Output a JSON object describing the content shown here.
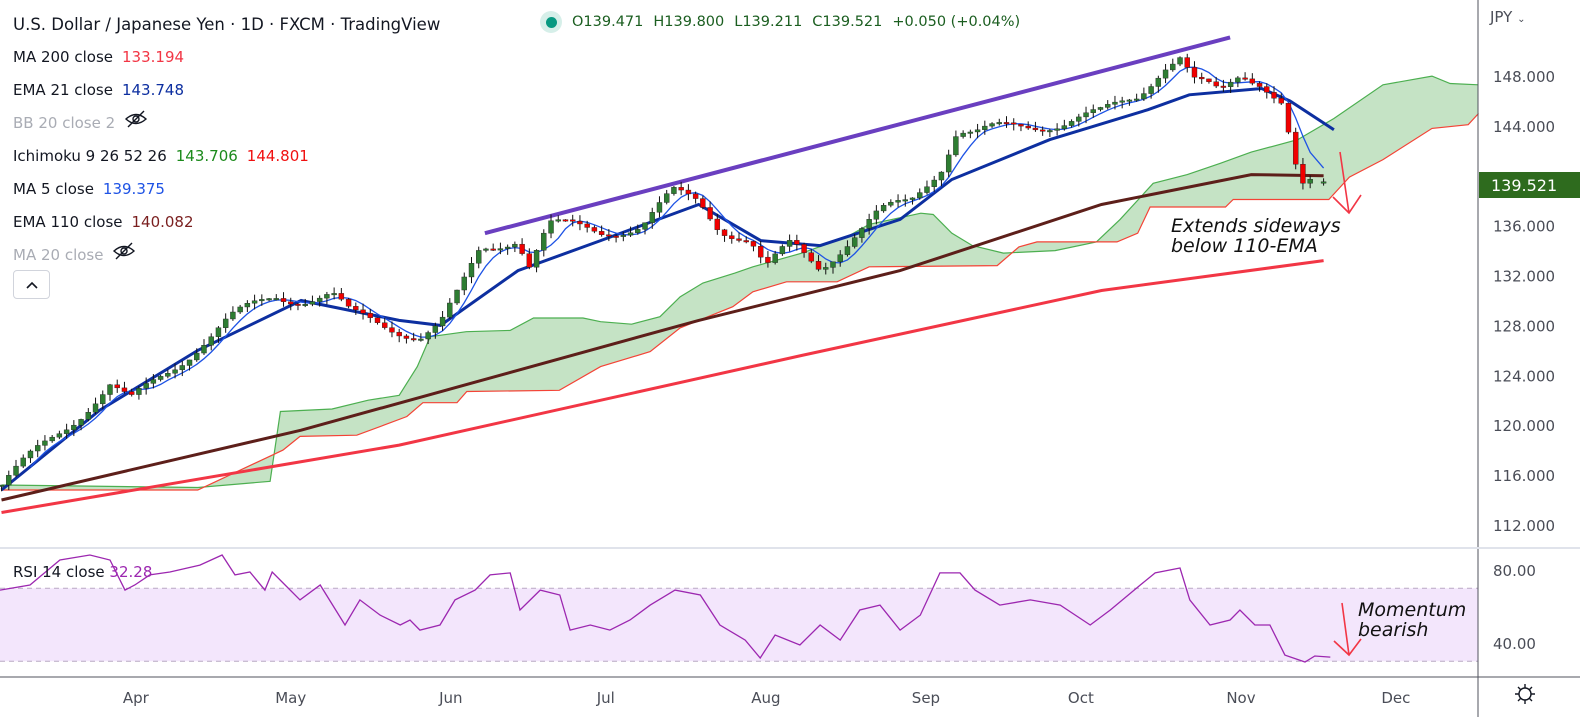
{
  "header": {
    "title": "U.S. Dollar / Japanese Yen · 1D · FXCM · TradingView",
    "open": "O139.471",
    "high": "H139.800",
    "low": "L139.211",
    "close": "C139.521",
    "change": "+0.050 (+0.04%)"
  },
  "legend": [
    {
      "label": "MA 200 close",
      "values": [
        {
          "v": "133.194",
          "color": "#f23645"
        }
      ],
      "hidden": false
    },
    {
      "label": "EMA 21 close",
      "values": [
        {
          "v": "143.748",
          "color": "#0d2fa0"
        }
      ],
      "hidden": false
    },
    {
      "label": "BB 20 close 2",
      "values": [],
      "hidden": true
    },
    {
      "label": "Ichimoku 9 26 52 26",
      "values": [
        {
          "v": "143.706",
          "color": "#1b8a1b"
        },
        {
          "v": "144.801",
          "color": "#f01010"
        }
      ],
      "hidden": false
    },
    {
      "label": "MA 5 close",
      "values": [
        {
          "v": "139.375",
          "color": "#1e53e5"
        }
      ],
      "hidden": false
    },
    {
      "label": "EMA 110 close",
      "values": [
        {
          "v": "140.082",
          "color": "#7a1f1f"
        }
      ],
      "hidden": false
    },
    {
      "label": "MA 20 close",
      "values": [],
      "hidden": true
    }
  ],
  "collapse_icon": "chevron-up-icon",
  "currency": "JPY",
  "last_price": "139.521",
  "rsi_label": "RSI 14 close",
  "rsi_value": "32.28",
  "annotations": {
    "price": [
      "Extends sideways",
      "below 110-EMA"
    ],
    "rsi": [
      "Momentum",
      "bearish"
    ]
  },
  "settings_icon": "gear-icon",
  "colors": {
    "up": "#2e7d32",
    "down": "#f00000",
    "ma200": "#f23645",
    "ema110": "#5d1f1a",
    "ema21": "#0d2fa0",
    "ma5": "#1e53e5",
    "trend": "#6a3fc0",
    "cloud": "#c2e2c2",
    "spanA": "#4caf50",
    "spanB": "#f44336",
    "rsi": "#9c27b0",
    "rsiBand": "#f3e6fc"
  },
  "chart_data": {
    "type": "candlestick",
    "title": "U.S. Dollar / Japanese Yen · 1D · FXCM",
    "x_unit": "days since Mar 1",
    "xlim": [
      4.7,
      290.9
    ],
    "ylim": [
      110.15,
      154.1
    ],
    "y_ticks": [
      "148.000",
      "144.000",
      "136.000",
      "132.000",
      "128.000",
      "124.000",
      "120.000",
      "116.000",
      "112.000"
    ],
    "y_tick_values": [
      148,
      144,
      136,
      132,
      128,
      124,
      120,
      116,
      112
    ],
    "x_ticks": [
      {
        "label": "Apr",
        "day": 31
      },
      {
        "label": "May",
        "day": 61
      },
      {
        "label": "Jun",
        "day": 92
      },
      {
        "label": "Jul",
        "day": 122
      },
      {
        "label": "Aug",
        "day": 153
      },
      {
        "label": "Sep",
        "day": 184
      },
      {
        "label": "Oct",
        "day": 214
      },
      {
        "label": "Nov",
        "day": 245
      },
      {
        "label": "Dec",
        "day": 275
      }
    ],
    "last_bar": {
      "o": 139.471,
      "h": 139.8,
      "l": 139.211,
      "c": 139.521
    },
    "close_path": [
      [
        5,
        115.2
      ],
      [
        26,
        123.2
      ],
      [
        30,
        121.8
      ],
      [
        43,
        126.4
      ],
      [
        49,
        128.4
      ],
      [
        58,
        130.4
      ],
      [
        63,
        130.2
      ],
      [
        69,
        130.4
      ],
      [
        72.5,
        128.8
      ],
      [
        80,
        128.0
      ],
      [
        86,
        127.2
      ],
      [
        90,
        128.0
      ],
      [
        94,
        130.8
      ],
      [
        97.6,
        134.0
      ],
      [
        105,
        135.2
      ],
      [
        107,
        132.8
      ],
      [
        111,
        136.0
      ],
      [
        121,
        135.6
      ],
      [
        129,
        136.0
      ],
      [
        135,
        138.5
      ],
      [
        140,
        138.0
      ],
      [
        144,
        136.0
      ],
      [
        150,
        134.8
      ],
      [
        153,
        132.4
      ],
      [
        158,
        134.5
      ],
      [
        163.5,
        132.8
      ],
      [
        169,
        134.8
      ],
      [
        175,
        136.9
      ],
      [
        181,
        138.0
      ],
      [
        187,
        140.9
      ],
      [
        190,
        143.7
      ],
      [
        193.5,
        143.3
      ],
      [
        198,
        143.7
      ],
      [
        204,
        144.1
      ],
      [
        210,
        144.3
      ],
      [
        218,
        144.9
      ],
      [
        225,
        146.5
      ],
      [
        230,
        148.9
      ],
      [
        234,
        149.7
      ],
      [
        235,
        147.7
      ],
      [
        241,
        146.5
      ],
      [
        245,
        148.2
      ],
      [
        249,
        147.7
      ],
      [
        253,
        146.0
      ],
      [
        254.5,
        142.9
      ],
      [
        256.5,
        138.9
      ],
      [
        261,
        139.5
      ]
    ],
    "ma200": [
      [
        5,
        113.0
      ],
      [
        82,
        118.4
      ],
      [
        160,
        125.6
      ],
      [
        218,
        130.8
      ],
      [
        261,
        133.2
      ]
    ],
    "ema110": [
      [
        5,
        114.0
      ],
      [
        63,
        119.6
      ],
      [
        101.5,
        124.0
      ],
      [
        140,
        128.4
      ],
      [
        179,
        132.4
      ],
      [
        218,
        137.7
      ],
      [
        247,
        140.1
      ],
      [
        261,
        140.0
      ]
    ],
    "ema21": [
      [
        5,
        114.8
      ],
      [
        24,
        121.2
      ],
      [
        43,
        126.0
      ],
      [
        63,
        130.0
      ],
      [
        82,
        128.4
      ],
      [
        90,
        128.0
      ],
      [
        105,
        132.4
      ],
      [
        121,
        134.8
      ],
      [
        140,
        137.7
      ],
      [
        152,
        134.8
      ],
      [
        163.5,
        134.4
      ],
      [
        179,
        136.5
      ],
      [
        189,
        139.7
      ],
      [
        208,
        142.9
      ],
      [
        227,
        145.3
      ],
      [
        235,
        146.5
      ],
      [
        249,
        147.0
      ],
      [
        254.5,
        146.0
      ],
      [
        263,
        143.7
      ]
    ],
    "span_a": [
      [
        5,
        115.2
      ],
      [
        43,
        115.0
      ],
      [
        57,
        115.5
      ],
      [
        59,
        121.1
      ],
      [
        69,
        121.3
      ],
      [
        76,
        122.0
      ],
      [
        82,
        122.4
      ],
      [
        85.5,
        124.7
      ],
      [
        88,
        127.1
      ],
      [
        95,
        127.5
      ],
      [
        103.5,
        127.6
      ],
      [
        108,
        128.6
      ],
      [
        117.6,
        128.6
      ],
      [
        121,
        128.3
      ],
      [
        127,
        128.1
      ],
      [
        132.5,
        128.7
      ],
      [
        136.4,
        130.3
      ],
      [
        140.8,
        131.4
      ],
      [
        147,
        132.2
      ],
      [
        150.5,
        132.7
      ],
      [
        160,
        133.8
      ],
      [
        168.7,
        135.1
      ],
      [
        173,
        136.1
      ],
      [
        183,
        137.0
      ],
      [
        185.4,
        136.9
      ],
      [
        189,
        135.4
      ],
      [
        193,
        134.4
      ],
      [
        199,
        133.8
      ],
      [
        209,
        134.0
      ],
      [
        217,
        134.7
      ],
      [
        221.6,
        136.5
      ],
      [
        228,
        139.4
      ],
      [
        234.6,
        140.1
      ],
      [
        241,
        141.0
      ],
      [
        247,
        141.9
      ],
      [
        256,
        142.9
      ],
      [
        263,
        144.6
      ],
      [
        272.5,
        147.3
      ],
      [
        282,
        148.0
      ],
      [
        285.5,
        147.4
      ],
      [
        291,
        147.3
      ]
    ],
    "span_b": [
      [
        5,
        114.8
      ],
      [
        43,
        114.8
      ],
      [
        59.5,
        118.0
      ],
      [
        62.8,
        119.1
      ],
      [
        73.8,
        119.2
      ],
      [
        79,
        120.0
      ],
      [
        83.5,
        120.7
      ],
      [
        86.6,
        121.8
      ],
      [
        93.2,
        121.8
      ],
      [
        95.1,
        122.7
      ],
      [
        113,
        122.8
      ],
      [
        121,
        124.7
      ],
      [
        130.6,
        125.9
      ],
      [
        136.4,
        127.8
      ],
      [
        146.6,
        129.5
      ],
      [
        150.5,
        130.7
      ],
      [
        157,
        131.5
      ],
      [
        166.8,
        131.5
      ],
      [
        173,
        132.7
      ],
      [
        197.8,
        132.8
      ],
      [
        202,
        134.3
      ],
      [
        205.5,
        134.7
      ],
      [
        221,
        134.7
      ],
      [
        225,
        135.4
      ],
      [
        227.4,
        137.5
      ],
      [
        242,
        137.5
      ],
      [
        243.5,
        138.1
      ],
      [
        262,
        138.1
      ],
      [
        266,
        139.9
      ],
      [
        272.5,
        141.3
      ],
      [
        282,
        143.8
      ],
      [
        289,
        144.1
      ],
      [
        291,
        145.0
      ]
    ],
    "trendline": [
      [
        98.6,
        135.4
      ],
      [
        242.9,
        151.1
      ]
    ],
    "rsi": {
      "ylim": [
        21.4,
        92.05
      ],
      "band": [
        30,
        70
      ],
      "ticks": [
        "80.00",
        "40.00"
      ],
      "tick_values": [
        80,
        40
      ],
      "values": [
        [
          4.7,
          69.0
        ],
        [
          10.5,
          71.8
        ],
        [
          16.3,
          85.5
        ],
        [
          22.1,
          88.2
        ],
        [
          26,
          85.5
        ],
        [
          28.9,
          69.0
        ],
        [
          30.8,
          71.8
        ],
        [
          33.7,
          77.3
        ],
        [
          37.6,
          78.9
        ],
        [
          43.4,
          82.7
        ],
        [
          47.7,
          88.2
        ],
        [
          50.2,
          77.3
        ],
        [
          53.1,
          78.9
        ],
        [
          56,
          69.0
        ],
        [
          57.4,
          78.9
        ],
        [
          59.9,
          71.8
        ],
        [
          62.8,
          63.6
        ],
        [
          66.7,
          71.8
        ],
        [
          71.5,
          49.9
        ],
        [
          74.4,
          63.6
        ],
        [
          78.3,
          55.3
        ],
        [
          82.2,
          49.9
        ],
        [
          84.1,
          52.6
        ],
        [
          86,
          47.1
        ],
        [
          89.9,
          49.9
        ],
        [
          92.8,
          63.6
        ],
        [
          96.7,
          69.0
        ],
        [
          99.6,
          77.3
        ],
        [
          103.5,
          78.4
        ],
        [
          105.4,
          58.1
        ],
        [
          109.3,
          69.0
        ],
        [
          113.1,
          66.3
        ],
        [
          115.1,
          47.1
        ],
        [
          119,
          49.9
        ],
        [
          122.8,
          47.1
        ],
        [
          126.7,
          52.6
        ],
        [
          130.6,
          60.8
        ],
        [
          135.4,
          69.0
        ],
        [
          140.3,
          66.3
        ],
        [
          144.1,
          49.9
        ],
        [
          149,
          41.6
        ],
        [
          151.9,
          31.8
        ],
        [
          154.8,
          44.4
        ],
        [
          159.6,
          38.9
        ],
        [
          163.5,
          49.9
        ],
        [
          167.4,
          41.6
        ],
        [
          171.2,
          58.1
        ],
        [
          175.1,
          60.8
        ],
        [
          179,
          47.1
        ],
        [
          182.9,
          55.3
        ],
        [
          186.7,
          78.4
        ],
        [
          190.6,
          78.4
        ],
        [
          193.5,
          69.0
        ],
        [
          198.3,
          60.8
        ],
        [
          204.2,
          63.6
        ],
        [
          210,
          60.8
        ],
        [
          215.8,
          49.9
        ],
        [
          219.7,
          58.1
        ],
        [
          225.5,
          71.8
        ],
        [
          228.4,
          78.4
        ],
        [
          233.2,
          81.1
        ],
        [
          235.1,
          63.6
        ],
        [
          239,
          49.9
        ],
        [
          242.9,
          52.6
        ],
        [
          244.8,
          58.1
        ],
        [
          247.7,
          49.9
        ],
        [
          250.6,
          49.9
        ],
        [
          253.5,
          33.4
        ],
        [
          257.4,
          29.6
        ],
        [
          259.3,
          32.9
        ],
        [
          262.3,
          32.3
        ]
      ]
    }
  }
}
